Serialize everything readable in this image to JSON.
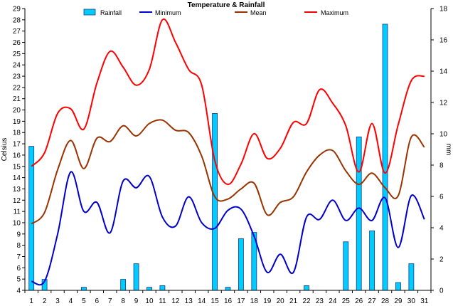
{
  "chart_data": {
    "type": "bar+line",
    "title": "Temperature & Rainfall",
    "ylabel_left": "Celsius",
    "ylabel_right": "mm",
    "ylim_left": [
      4,
      29
    ],
    "ylim_right": [
      0,
      18
    ],
    "x": [
      1,
      2,
      3,
      4,
      5,
      6,
      7,
      8,
      9,
      10,
      11,
      12,
      13,
      14,
      15,
      16,
      17,
      18,
      19,
      20,
      21,
      22,
      23,
      24,
      25,
      26,
      27,
      28,
      29,
      30,
      31
    ],
    "legend": [
      "Rainfall",
      "Minimum",
      "Mean",
      "Maximum"
    ],
    "colors": {
      "rainfall_fill": "#00ccff",
      "rainfall_stroke": "#1a3a8a",
      "minimum": "#0000cc",
      "mean": "#993300",
      "maximum": "#ff0000"
    },
    "rainfall": [
      9.2,
      0.7,
      0,
      0,
      0.2,
      0,
      0,
      0.7,
      1.7,
      0.2,
      0.3,
      0,
      0,
      0,
      11.3,
      0.2,
      3.3,
      3.7,
      0,
      0,
      0,
      0.3,
      0,
      0,
      3.1,
      9.8,
      3.8,
      17.0,
      0.5,
      1.7,
      0
    ],
    "series": [
      {
        "name": "Minimum",
        "values": [
          4.8,
          4.8,
          9.0,
          14.5,
          11.0,
          11.8,
          9.1,
          13.7,
          13.1,
          14.1,
          10.5,
          9.7,
          12.3,
          10.0,
          9.5,
          11.1,
          11.2,
          8.8,
          5.6,
          7.2,
          5.6,
          10.5,
          10.3,
          12.0,
          10.2,
          11.3,
          10.2,
          12.2,
          7.8,
          12.4,
          10.3
        ]
      },
      {
        "name": "Mean",
        "values": [
          9.9,
          10.9,
          14.7,
          17.3,
          14.8,
          17.5,
          17.2,
          18.6,
          17.7,
          18.8,
          19.1,
          18.2,
          18.0,
          15.9,
          12.3,
          12.1,
          13.0,
          13.5,
          10.7,
          11.8,
          12.3,
          14.5,
          16.0,
          16.4,
          14.6,
          13.4,
          14.4,
          13.1,
          12.4,
          17.6,
          16.7
        ]
      },
      {
        "name": "Maximum",
        "values": [
          15.0,
          16.2,
          19.7,
          20.1,
          18.3,
          22.4,
          25.2,
          23.8,
          22.2,
          23.6,
          28.0,
          26.0,
          23.6,
          22.2,
          15.5,
          13.4,
          15.2,
          17.9,
          15.7,
          16.6,
          18.9,
          18.8,
          21.8,
          20.6,
          18.6,
          14.5,
          18.8,
          14.4,
          18.7,
          22.6,
          23.0
        ]
      }
    ]
  }
}
